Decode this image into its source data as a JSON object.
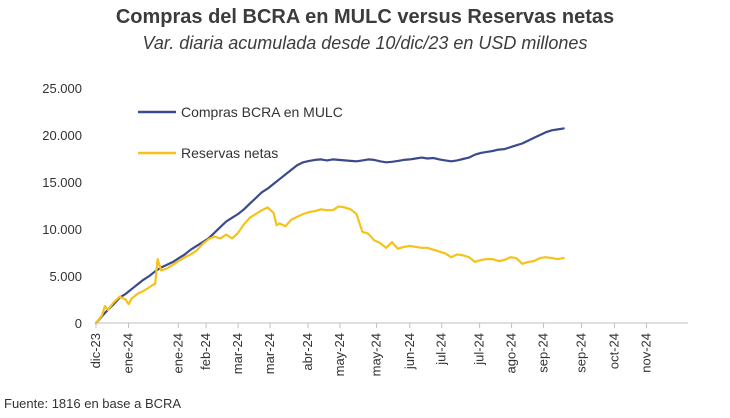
{
  "chart_data": {
    "type": "line",
    "title": "Compras del BCRA en MULC versus Reservas netas",
    "subtitle": "Var. diaria acumulada desde 10/dic/23 en USD millones",
    "xlabel": "",
    "ylabel": "",
    "ylim": [
      0,
      25000
    ],
    "yticks": [
      "0",
      "5.000",
      "10.000",
      "15.000",
      "20.000",
      "25.000"
    ],
    "ytick_values": [
      0,
      5000,
      10000,
      15000,
      20000,
      25000
    ],
    "x_range": [
      0,
      100
    ],
    "xtick_labels": [
      "dic-23",
      "ene-24",
      "ene-24",
      "feb-24",
      "mar-24",
      "mar-24",
      "abr-24",
      "may-24",
      "may-24",
      "jun-24",
      "jul-24",
      "jul-24",
      "ago-24",
      "sep-24",
      "sep-24",
      "oct-24",
      "nov-24"
    ],
    "xtick_positions": [
      0,
      5.5,
      13.9,
      18.6,
      24.0,
      29.4,
      35.8,
      41.2,
      47.4,
      53.0,
      58.4,
      64.8,
      70.2,
      75.6,
      82.0,
      87.6,
      93.0
    ],
    "legend_position": "top-left",
    "grid": false,
    "series": [
      {
        "name": "Compras BCRA en MULC",
        "color": "#3b4a8c",
        "points": [
          [
            0,
            0
          ],
          [
            1,
            700
          ],
          [
            2,
            1400
          ],
          [
            3,
            2000
          ],
          [
            4,
            2700
          ],
          [
            5,
            3100
          ],
          [
            6,
            3600
          ],
          [
            7,
            4100
          ],
          [
            8,
            4600
          ],
          [
            9,
            5000
          ],
          [
            10,
            5500
          ],
          [
            11,
            5900
          ],
          [
            12,
            6200
          ],
          [
            13,
            6500
          ],
          [
            14,
            6900
          ],
          [
            15,
            7300
          ],
          [
            16,
            7800
          ],
          [
            17,
            8200
          ],
          [
            18,
            8600
          ],
          [
            19,
            9000
          ],
          [
            20,
            9600
          ],
          [
            21,
            10200
          ],
          [
            22,
            10800
          ],
          [
            23,
            11200
          ],
          [
            24,
            11600
          ],
          [
            25,
            12100
          ],
          [
            26,
            12700
          ],
          [
            27,
            13300
          ],
          [
            28,
            13900
          ],
          [
            29,
            14300
          ],
          [
            30,
            14800
          ],
          [
            31,
            15300
          ],
          [
            32,
            15800
          ],
          [
            33,
            16300
          ],
          [
            34,
            16800
          ],
          [
            35,
            17100
          ],
          [
            36,
            17250
          ],
          [
            37,
            17350
          ],
          [
            38,
            17400
          ],
          [
            39,
            17300
          ],
          [
            40,
            17400
          ],
          [
            41,
            17350
          ],
          [
            42,
            17300
          ],
          [
            43,
            17250
          ],
          [
            44,
            17200
          ],
          [
            45,
            17300
          ],
          [
            46,
            17400
          ],
          [
            47,
            17350
          ],
          [
            48,
            17200
          ],
          [
            49,
            17100
          ],
          [
            50,
            17150
          ],
          [
            51,
            17250
          ],
          [
            52,
            17350
          ],
          [
            53,
            17400
          ],
          [
            54,
            17500
          ],
          [
            55,
            17600
          ],
          [
            56,
            17500
          ],
          [
            57,
            17550
          ],
          [
            58,
            17400
          ],
          [
            59,
            17300
          ],
          [
            60,
            17200
          ],
          [
            61,
            17300
          ],
          [
            62,
            17450
          ],
          [
            63,
            17600
          ],
          [
            64,
            17900
          ],
          [
            65,
            18100
          ],
          [
            66,
            18200
          ],
          [
            67,
            18300
          ],
          [
            68,
            18450
          ],
          [
            69,
            18500
          ],
          [
            70,
            18700
          ],
          [
            71,
            18900
          ],
          [
            72,
            19100
          ],
          [
            73,
            19400
          ],
          [
            74,
            19700
          ],
          [
            75,
            20000
          ],
          [
            76,
            20300
          ],
          [
            77,
            20500
          ],
          [
            78,
            20600
          ],
          [
            79,
            20700
          ]
        ]
      },
      {
        "name": "Reservas netas",
        "color": "#f5c218",
        "points": [
          [
            0,
            0
          ],
          [
            1,
            800
          ],
          [
            1.5,
            1800
          ],
          [
            2,
            1400
          ],
          [
            3,
            2200
          ],
          [
            4,
            2800
          ],
          [
            5,
            2500
          ],
          [
            5.5,
            2000
          ],
          [
            6,
            2600
          ],
          [
            7,
            3100
          ],
          [
            8,
            3400
          ],
          [
            9,
            3800
          ],
          [
            10,
            4200
          ],
          [
            10.4,
            6800
          ],
          [
            11,
            5600
          ],
          [
            12,
            5800
          ],
          [
            13,
            6200
          ],
          [
            14,
            6600
          ],
          [
            15,
            7000
          ],
          [
            16,
            7300
          ],
          [
            17,
            7700
          ],
          [
            18,
            8400
          ],
          [
            19,
            8900
          ],
          [
            20,
            9200
          ],
          [
            21,
            9000
          ],
          [
            22,
            9400
          ],
          [
            23,
            9000
          ],
          [
            24,
            9600
          ],
          [
            25,
            10500
          ],
          [
            26,
            11200
          ],
          [
            27,
            11600
          ],
          [
            28,
            12000
          ],
          [
            29,
            12300
          ],
          [
            30,
            11700
          ],
          [
            30.5,
            10400
          ],
          [
            31,
            10600
          ],
          [
            32,
            10300
          ],
          [
            33,
            11000
          ],
          [
            34,
            11300
          ],
          [
            35,
            11600
          ],
          [
            36,
            11800
          ],
          [
            37,
            11900
          ],
          [
            38,
            12100
          ],
          [
            39,
            12000
          ],
          [
            40,
            12000
          ],
          [
            41,
            12400
          ],
          [
            42,
            12300
          ],
          [
            43,
            12100
          ],
          [
            44,
            11600
          ],
          [
            45,
            9700
          ],
          [
            46,
            9500
          ],
          [
            47,
            8800
          ],
          [
            48,
            8500
          ],
          [
            49,
            8000
          ],
          [
            50,
            8600
          ],
          [
            51,
            7900
          ],
          [
            52,
            8100
          ],
          [
            53,
            8200
          ],
          [
            54,
            8100
          ],
          [
            55,
            8000
          ],
          [
            56,
            8000
          ],
          [
            57,
            7800
          ],
          [
            58,
            7600
          ],
          [
            59,
            7400
          ],
          [
            60,
            7000
          ],
          [
            61,
            7300
          ],
          [
            62,
            7200
          ],
          [
            63,
            7000
          ],
          [
            64,
            6500
          ],
          [
            65,
            6700
          ],
          [
            66,
            6800
          ],
          [
            67,
            6800
          ],
          [
            68,
            6600
          ],
          [
            69,
            6700
          ],
          [
            70,
            7000
          ],
          [
            71,
            6900
          ],
          [
            72,
            6300
          ],
          [
            73,
            6500
          ],
          [
            74,
            6600
          ],
          [
            75,
            6900
          ],
          [
            76,
            7000
          ],
          [
            77,
            6900
          ],
          [
            78,
            6800
          ],
          [
            79,
            6900
          ]
        ]
      }
    ]
  },
  "footer": {
    "source": "Fuente: 1816 en base a BCRA"
  }
}
